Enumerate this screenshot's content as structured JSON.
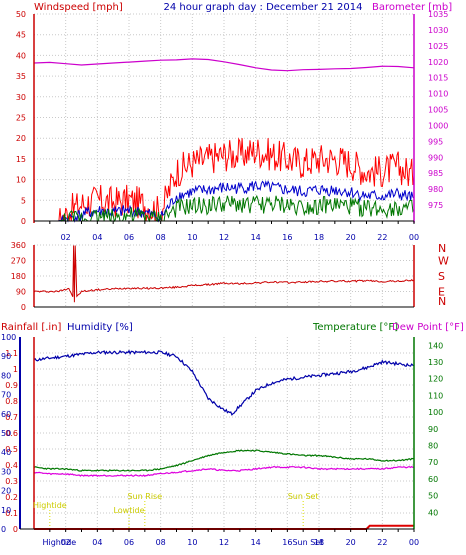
{
  "chart_data": [
    {
      "panel": "wind-barometer",
      "type": "line",
      "title": "24 hour graph day : December 21 2014",
      "ylabel_left": "Windspeed [mph]",
      "ylabel_right": "Barometer [mb]",
      "xlabels": [
        "02",
        "04",
        "06",
        "08",
        "10",
        "12",
        "14",
        "16",
        "18",
        "20",
        "22",
        "00"
      ],
      "ylim_left": [
        0,
        50
      ],
      "yticks_left": [
        "0",
        "5",
        "10",
        "15",
        "20",
        "25",
        "30",
        "35",
        "40",
        "45",
        "50"
      ],
      "ylim_right": [
        970,
        1035
      ],
      "yticks_right": [
        "975",
        "980",
        "985",
        "990",
        "995",
        "1000",
        "1005",
        "1010",
        "1015",
        "1020",
        "1025",
        "1030",
        "1035"
      ],
      "grid": true,
      "series": [
        {
          "name": "Barometer",
          "axis": "right",
          "color": "#cc00cc",
          "x": [
            0,
            1,
            2,
            3,
            4,
            5,
            6,
            7,
            8,
            9,
            10,
            11,
            12,
            13,
            14,
            15,
            16,
            17,
            18,
            19,
            20,
            21,
            22,
            23,
            24
          ],
          "values": [
            1019.6,
            1019.8,
            1019.4,
            1019.0,
            1019.3,
            1019.6,
            1019.9,
            1020.2,
            1020.5,
            1020.6,
            1020.9,
            1020.7,
            1020.0,
            1019.1,
            1018.1,
            1017.4,
            1017.2,
            1017.5,
            1017.6,
            1017.8,
            1017.9,
            1018.2,
            1018.6,
            1018.5,
            1018.1
          ]
        },
        {
          "name": "Wind gust",
          "axis": "left",
          "color": "#ff0000",
          "x": [
            0,
            1.5,
            2.5,
            3,
            4,
            5,
            6,
            7,
            8,
            9,
            10,
            11,
            12,
            13,
            14,
            15,
            16,
            17,
            18,
            19,
            20,
            21,
            22,
            23,
            24
          ],
          "values": [
            0,
            0,
            3,
            4,
            5,
            4.5,
            5,
            4,
            2,
            12,
            14,
            15,
            16,
            16,
            17,
            16,
            15,
            14,
            15,
            15,
            14,
            12,
            12,
            13,
            11
          ]
        },
        {
          "name": "Wind average",
          "axis": "left",
          "color": "#0000cc",
          "x": [
            0,
            1.5,
            2.5,
            3,
            4,
            5,
            6,
            7,
            8,
            9,
            10,
            11,
            12,
            13,
            14,
            15,
            16,
            17,
            18,
            19,
            20,
            21,
            22,
            23,
            24
          ],
          "values": [
            0,
            0,
            1,
            1.5,
            2.5,
            2,
            2.5,
            2,
            0.8,
            6,
            7,
            7.5,
            8,
            8,
            8.5,
            8,
            7.5,
            7,
            7.5,
            7.5,
            7,
            6,
            6,
            6.5,
            5.5
          ]
        },
        {
          "name": "Wind speed",
          "axis": "left",
          "color": "#007700",
          "x": [
            0,
            1.5,
            2.5,
            3,
            4,
            5,
            6,
            7,
            8,
            9,
            10,
            11,
            12,
            13,
            14,
            15,
            16,
            17,
            18,
            19,
            20,
            21,
            22,
            23,
            24
          ],
          "values": [
            0,
            0,
            0.5,
            0.8,
            1.2,
            1,
            1.2,
            1,
            0.3,
            3,
            3.5,
            3.8,
            4,
            4,
            4,
            4,
            3.8,
            3.5,
            3.8,
            3.8,
            3.5,
            3,
            3,
            3.2,
            2.8
          ]
        }
      ]
    },
    {
      "panel": "wind-direction",
      "type": "line",
      "xlabels": [
        "02",
        "04",
        "06",
        "08",
        "10",
        "12",
        "14",
        "16",
        "18",
        "20",
        "22",
        "00"
      ],
      "ylim": [
        0,
        360
      ],
      "yticks": [
        "0",
        "90",
        "180",
        "270",
        "360"
      ],
      "compass": [
        "N",
        "W",
        "S",
        "E",
        "N"
      ],
      "grid": true,
      "series": [
        {
          "name": "Wind direction",
          "color": "#cc0000",
          "x": [
            0,
            1.5,
            2.2,
            2.45,
            2.5,
            2.55,
            2.6,
            2.7,
            3,
            4,
            5,
            6,
            7,
            8,
            9,
            10,
            11,
            12,
            13,
            14,
            15,
            16,
            17,
            18,
            19,
            20,
            21,
            22,
            23,
            24
          ],
          "values": [
            90,
            90,
            110,
            60,
            355,
            30,
            360,
            60,
            90,
            100,
            105,
            110,
            108,
            110,
            115,
            125,
            130,
            138,
            135,
            140,
            145,
            142,
            145,
            148,
            150,
            150,
            152,
            148,
            150,
            155
          ]
        }
      ]
    },
    {
      "panel": "rain-humidity-temperature",
      "type": "line",
      "ylabel_left_1": "Rainfall [.in]",
      "ylabel_left_2": "Humidity [%]",
      "ylabel_right_1": "Temperature [°F]",
      "ylabel_right_2": "Dew Point [°F]",
      "xlabels": [
        "02",
        "04",
        "06",
        "08",
        "10",
        "12",
        "14",
        "16",
        "18",
        "20",
        "22",
        "00"
      ],
      "ylim_rain": [
        0,
        1.2
      ],
      "yticks_rain": [
        "0",
        "0.1",
        "0.2",
        "0.3",
        "0.4",
        "0.5",
        "0.6",
        "0.7",
        "0.8",
        "0.9",
        "1",
        "1.1"
      ],
      "ylim_humidity": [
        0,
        100
      ],
      "yticks_humidity": [
        "0",
        "10",
        "20",
        "30",
        "40",
        "50",
        "60",
        "70",
        "80",
        "90",
        "100"
      ],
      "ylim_temperature": [
        30,
        145
      ],
      "yticks_temperature": [
        "40",
        "50",
        "60",
        "70",
        "80",
        "90",
        "100",
        "110",
        "120",
        "130",
        "140"
      ],
      "grid": true,
      "series": [
        {
          "name": "Humidity",
          "axis": "humidity",
          "color": "#0000aa",
          "x": [
            0,
            1,
            2,
            3,
            4,
            5,
            6,
            7,
            8,
            9,
            10,
            11,
            12,
            12.5,
            13,
            14,
            15,
            16,
            17,
            18,
            19,
            20,
            21,
            22,
            23,
            24
          ],
          "values": [
            88,
            89,
            90,
            91,
            92,
            92,
            92,
            92,
            92,
            90,
            82,
            68,
            62,
            60,
            64,
            72,
            76,
            78,
            79,
            80,
            81,
            82,
            84,
            87,
            86,
            85
          ]
        },
        {
          "name": "Temperature",
          "axis": "temperature",
          "color": "#007700",
          "x": [
            0,
            1,
            2,
            3,
            4,
            5,
            6,
            7,
            8,
            9,
            10,
            11,
            12,
            13,
            14,
            15,
            16,
            17,
            18,
            19,
            20,
            21,
            22,
            23,
            24
          ],
          "values": [
            67,
            66,
            66,
            65,
            65,
            65,
            65,
            65,
            66,
            68,
            71,
            74,
            76,
            77,
            77,
            76,
            75,
            74,
            74,
            73,
            72,
            72,
            71,
            71,
            72
          ]
        },
        {
          "name": "Dew Point",
          "axis": "temperature",
          "color": "#dd00dd",
          "x": [
            0,
            1,
            2,
            3,
            4,
            5,
            6,
            7,
            8,
            9,
            10,
            11,
            12,
            13,
            14,
            15,
            16,
            17,
            18,
            19,
            20,
            21,
            22,
            23,
            24
          ],
          "values": [
            64,
            63,
            63,
            62,
            62,
            62,
            62,
            62,
            63,
            64,
            65,
            66,
            65,
            65,
            66,
            67,
            67,
            67,
            66,
            66,
            66,
            66,
            66,
            67,
            67
          ]
        },
        {
          "name": "Rainfall",
          "axis": "rain",
          "color": "#dd0000",
          "x": [
            0,
            21,
            21.2,
            24
          ],
          "values": [
            0,
            0,
            0.02,
            0.02
          ]
        }
      ],
      "annotations": [
        {
          "label": "Hightide",
          "hour": 1
        },
        {
          "label": "Lowtide",
          "hour": 6
        },
        {
          "label": "Sun Rise",
          "hour": 7
        },
        {
          "label": "Sun Set",
          "hour": 17
        },
        {
          "label": "Hightide",
          "hour": 1.6
        },
        {
          "label": "Sun Set",
          "hour": 17.3
        }
      ]
    }
  ]
}
